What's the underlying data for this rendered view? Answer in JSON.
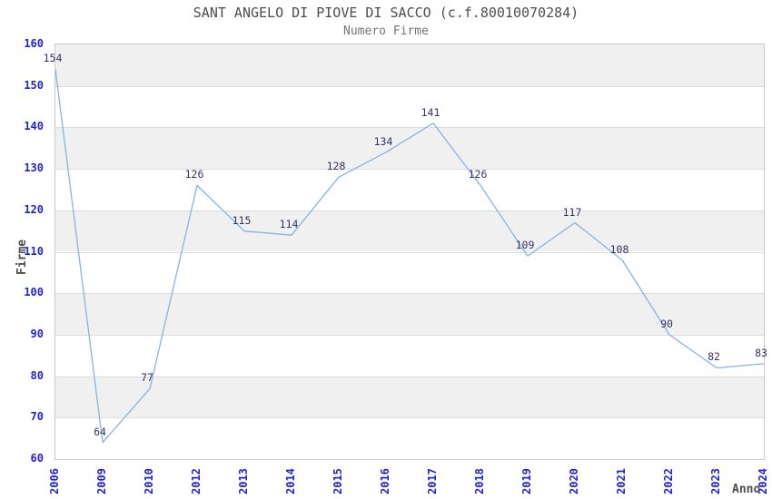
{
  "header": {
    "title": "SANT ANGELO DI PIOVE DI SACCO (c.f.80010070284)",
    "subtitle": "Numero Firme"
  },
  "chart_data": {
    "type": "line",
    "title": "SANT ANGELO DI PIOVE DI SACCO (c.f.80010070284)",
    "subtitle": "Numero Firme",
    "xlabel": "Anno",
    "ylabel": "Firme",
    "categories": [
      "2006",
      "2009",
      "2010",
      "2012",
      "2013",
      "2014",
      "2015",
      "2016",
      "2017",
      "2018",
      "2019",
      "2020",
      "2021",
      "2022",
      "2023",
      "2024"
    ],
    "values": [
      154,
      64,
      77,
      126,
      115,
      114,
      128,
      134,
      141,
      126,
      109,
      117,
      108,
      90,
      82,
      83
    ],
    "yticks": [
      60,
      70,
      80,
      90,
      100,
      110,
      120,
      130,
      140,
      150,
      160
    ],
    "ylim": [
      60,
      160
    ],
    "grid": "horizontal",
    "bands": "alternating-gray",
    "legend_position": "none",
    "colors": {
      "line": "#85b4e8",
      "band": "#f0f0f0",
      "gridline": "#dcdcdc",
      "plot_border": "#c9c9c9",
      "tick_label": "#2323d6",
      "data_label": "#333366",
      "title": "#4d4d4d",
      "subtitle": "#757575",
      "axis_title": "#4d4d4d",
      "background": "#ffffff"
    }
  }
}
